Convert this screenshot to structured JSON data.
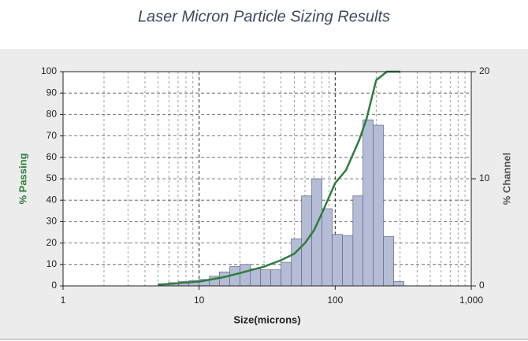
{
  "chart_data": {
    "type": "histogram",
    "title": "Laser Micron Particle Sizing Results",
    "xlabel": "Size(microns)",
    "ylabel": "% Passing",
    "y2label": "% Channel",
    "xscale": "log",
    "xlim": [
      1,
      1000
    ],
    "xticks": [
      1,
      10,
      100,
      {
        "value": 1000,
        "label": "1,000"
      }
    ],
    "ylim": [
      0,
      100
    ],
    "yticks": [
      0,
      10,
      20,
      30,
      40,
      50,
      60,
      70,
      80,
      90,
      100
    ],
    "y2lim": [
      0,
      20
    ],
    "y2ticks": [
      0,
      10,
      20
    ],
    "grid": true,
    "axis": "y2",
    "color": "#b5bdd6",
    "bins": [
      5,
      5.95,
      7.07,
      8.41,
      10,
      11.9,
      14.1,
      16.8,
      20,
      23.8,
      28.3,
      33.6,
      40,
      47.6,
      56.6,
      67.3,
      80,
      95.1,
      113,
      135,
      160,
      190,
      226,
      269,
      320
    ],
    "values": [
      0.2,
      0.3,
      0.4,
      0.5,
      0.6,
      0.9,
      1.3,
      1.8,
      2.0,
      1.6,
      1.5,
      1.5,
      2.2,
      4.4,
      8.4,
      10.0,
      7.2,
      4.8,
      4.7,
      8.4,
      15.5,
      15.0,
      4.6,
      0.4
    ],
    "line": {
      "type": "line",
      "color": "#2e7d3e",
      "x": [
        5,
        10,
        15,
        20,
        30,
        40,
        50,
        60,
        70,
        80,
        100,
        120,
        150,
        170,
        200,
        240,
        300
      ],
      "values": [
        0.5,
        2,
        4,
        6,
        9,
        12,
        15,
        20,
        26,
        34,
        48,
        54,
        68,
        78,
        96,
        100,
        100
      ]
    }
  }
}
